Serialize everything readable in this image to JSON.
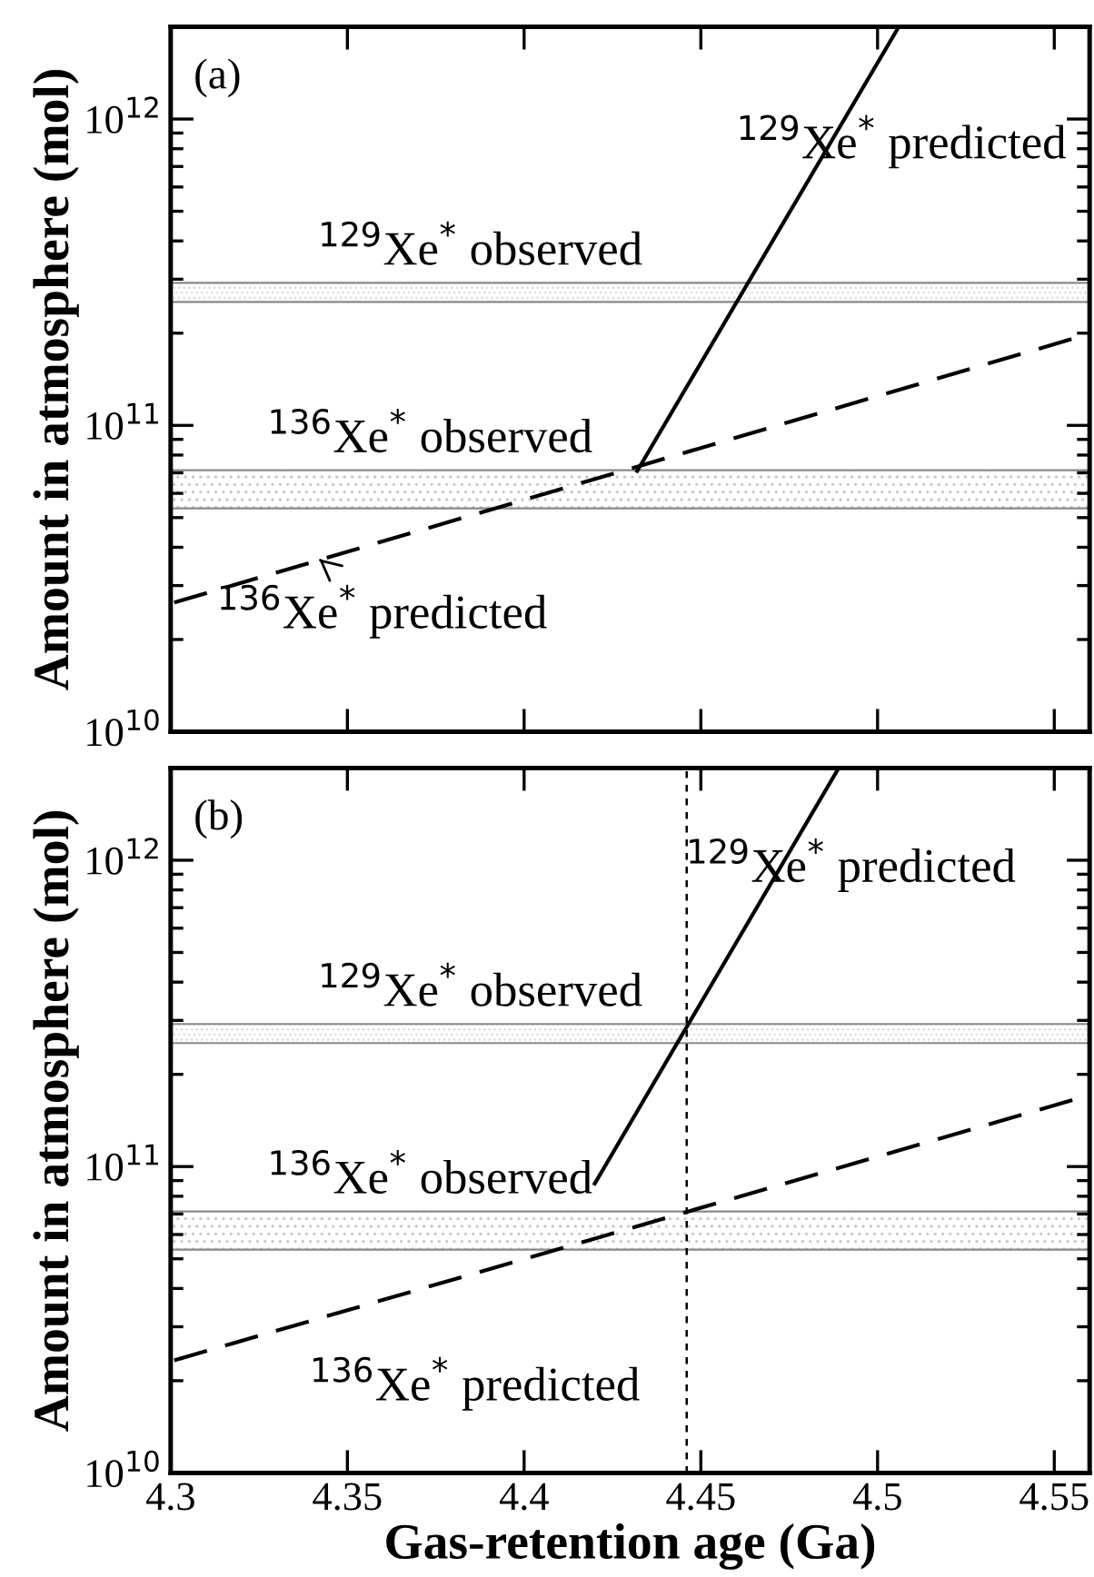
{
  "chart_data": [
    {
      "type": "line",
      "annotations": [
        "(a)",
        {
          "text": "$^{136}$Xe$^{*}$ predicted",
          "x": 4.342,
          "y": 36600000000
        }
      ],
      "ylabel": "Amount in atmosphere (mol)",
      "series": [
        {
          "name": "$^{129}$Xe$^{*}$ predicted",
          "color": "#000000",
          "line_style": "solid",
          "x": [
            4.432,
            4.506
          ],
          "values": [
            71000000000,
            2000000000000
          ]
        },
        {
          "color": "#000000",
          "line_style": "dashed",
          "x": [
            4.301,
            4.56
          ],
          "values": [
            26400000000,
            199000000000
          ]
        }
      ],
      "bands": [
        {
          "axis": "y",
          "from": 253000000000,
          "to": 292000000000,
          "label": "$^{129}$Xe$^{*}$ observed",
          "color": "#dcdcdc"
        },
        {
          "axis": "y",
          "from": 53600000000,
          "to": 71400000000,
          "label": "$^{136}$Xe$^{*}$ observed",
          "color": "#c8c8c8"
        }
      ],
      "log": "y",
      "xlim": [
        4.3,
        4.56
      ],
      "xticks": [
        4.3,
        4.35,
        4.4,
        4.45,
        4.5,
        4.55
      ],
      "ylim": [
        10000000000,
        2000000000000
      ],
      "yticks": [
        {
          "value": 10000000000,
          "label": "10$^{10}$"
        },
        {
          "value": 100000000000,
          "label": "10$^{11}$"
        },
        {
          "value": 1000000000000,
          "label": "10$^{12}$"
        }
      ],
      "tick_labels": "y",
      "grid": false,
      "legend": "top right"
    },
    {
      "type": "line",
      "annotations": [
        "(b)"
      ],
      "xlabel": "Gas-retention age (Ga)",
      "ylabel": "Amount in atmosphere (mol)",
      "series": [
        {
          "name": "$^{129}$Xe$^{*}$ predicted",
          "color": "#000000",
          "line_style": "solid",
          "x": [
            4.42,
            4.489
          ],
          "values": [
            88000000000,
            2000000000000
          ]
        },
        {
          "name": "$^{136}$Xe$^{*}$ predicted",
          "color": "#000000",
          "line_style": "dashed",
          "x": [
            4.301,
            4.56
          ],
          "values": [
            23300000000,
            171000000000
          ]
        }
      ],
      "bands": [
        {
          "axis": "y",
          "from": 253000000000,
          "to": 292000000000,
          "label": "$^{129}$Xe$^{*}$ observed",
          "color": "#dcdcdc"
        },
        {
          "axis": "y",
          "from": 53600000000,
          "to": 71400000000,
          "label": "$^{136}$Xe$^{*}$ observed",
          "color": "#c8c8c8"
        }
      ],
      "ref_lines": [
        {
          "axis": "x",
          "value": 4.446,
          "line_style": "dotted",
          "color": "#000000"
        }
      ],
      "log": "y",
      "xlim": [
        4.3,
        4.56
      ],
      "xticks": [
        4.3,
        4.35,
        4.4,
        4.45,
        4.5,
        4.55
      ],
      "ylim": [
        10000000000,
        2000000000000
      ],
      "yticks": [
        {
          "value": 10000000000,
          "label": "10$^{10}$"
        },
        {
          "value": 100000000000,
          "label": "10$^{11}$"
        },
        {
          "value": 1000000000000,
          "label": "10$^{12}$"
        }
      ],
      "grid": false,
      "legend": "top right"
    }
  ]
}
